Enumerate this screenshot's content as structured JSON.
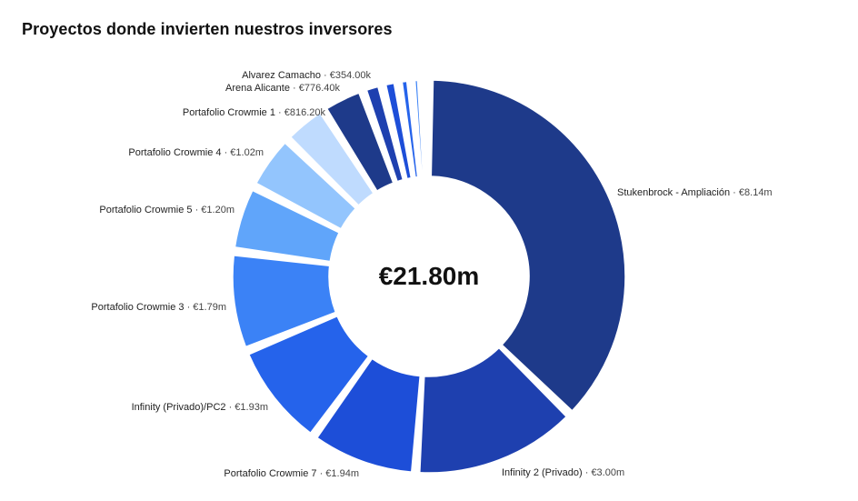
{
  "title": "Proyectos donde invierten nuestros inversores",
  "center_total": "€21.80m",
  "chart_data": {
    "type": "pie",
    "donut": true,
    "title": "Proyectos donde invierten nuestros inversores",
    "total": 21800000,
    "slices": [
      {
        "name": "Stukenbrock - Ampliación",
        "value": 8140000,
        "value_label": "€8.14m",
        "color": "#1e3a8a",
        "labeled": true
      },
      {
        "name": "Infinity 2 (Privado)",
        "value": 3000000,
        "value_label": "€3.00m",
        "color": "#1e40af",
        "labeled": true
      },
      {
        "name": "Portafolio Crowmie 7",
        "value": 1940000,
        "value_label": "€1.94m",
        "color": "#1d4ed8",
        "labeled": true
      },
      {
        "name": "Infinity (Privado)/PC2",
        "value": 1930000,
        "value_label": "€1.93m",
        "color": "#2563eb",
        "labeled": true
      },
      {
        "name": "Portafolio Crowmie 3",
        "value": 1790000,
        "value_label": "€1.79m",
        "color": "#3b82f6",
        "labeled": true
      },
      {
        "name": "Portafolio Crowmie 5",
        "value": 1200000,
        "value_label": "€1.20m",
        "color": "#60a5fa",
        "labeled": true
      },
      {
        "name": "Portafolio Crowmie 4",
        "value": 1020000,
        "value_label": "€1.02m",
        "color": "#93c5fd",
        "labeled": true
      },
      {
        "name": "Portafolio Crowmie 1",
        "value": 816200,
        "value_label": "€816.20k",
        "color": "#bfdbfe",
        "labeled": true
      },
      {
        "name": "Arena Alicante",
        "value": 776400,
        "value_label": "€776.40k",
        "color": "#1e3a8a",
        "labeled": true
      },
      {
        "name": "Alvarez Camacho",
        "value": 354000,
        "value_label": "€354.00k",
        "color": "#1e40af",
        "labeled": true
      },
      {
        "name": "",
        "value": 290000,
        "value_label": "",
        "color": "#1d4ed8",
        "labeled": false
      },
      {
        "name": "",
        "value": 230000,
        "value_label": "",
        "color": "#2563eb",
        "labeled": false
      },
      {
        "name": "",
        "value": 190000,
        "value_label": "",
        "color": "#3b82f6",
        "labeled": false
      },
      {
        "name": "",
        "value": 130000,
        "value_label": "",
        "color": "#60a5fa",
        "labeled": false
      }
    ]
  }
}
